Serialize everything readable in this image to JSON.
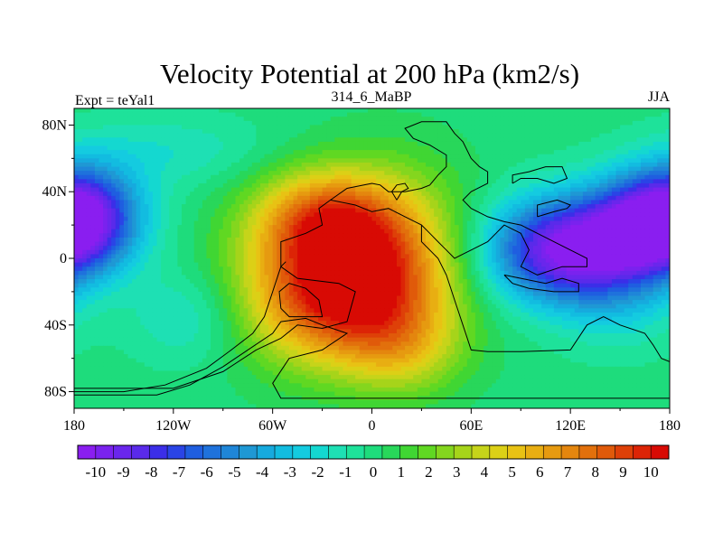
{
  "chart_data": {
    "type": "heatmap",
    "title": "Velocity Potential at 200 hPa (km2/s)",
    "left_label": "Expt = teYal1",
    "center_label": "314_6_MaBP",
    "right_label": "JJA",
    "xlim": [
      -180,
      180
    ],
    "ylim": [
      -90,
      90
    ],
    "x_ticks": [
      {
        "value": -180,
        "label": "180"
      },
      {
        "value": -120,
        "label": "120W"
      },
      {
        "value": -60,
        "label": "60W"
      },
      {
        "value": 0,
        "label": "0"
      },
      {
        "value": 60,
        "label": "60E"
      },
      {
        "value": 120,
        "label": "120E"
      },
      {
        "value": 180,
        "label": "180"
      }
    ],
    "y_ticks": [
      {
        "value": 80,
        "label": "80N"
      },
      {
        "value": 40,
        "label": "40N"
      },
      {
        "value": 0,
        "label": "0"
      },
      {
        "value": -40,
        "label": "40S"
      },
      {
        "value": -80,
        "label": "80S"
      }
    ],
    "colorbar": {
      "labels": [
        "-10",
        "-9",
        "-8",
        "-7",
        "-6",
        "-5",
        "-4",
        "-3",
        "-2",
        "-1",
        "0",
        "1",
        "2",
        "3",
        "4",
        "5",
        "6",
        "7",
        "8",
        "9",
        "10"
      ],
      "colors": [
        "#8a1ef0",
        "#7a22ee",
        "#6a26ec",
        "#5a2aea",
        "#3b2ee8",
        "#2a44e6",
        "#1f5ee0",
        "#1f72dc",
        "#1f86d8",
        "#1f98d4",
        "#16aade",
        "#12bce0",
        "#14cbe0",
        "#14d8d0",
        "#1ee0b4",
        "#1ee29a",
        "#1edc7c",
        "#28d75a",
        "#40d633",
        "#60d822",
        "#84d61e",
        "#a6d41a",
        "#c6d41a",
        "#dcd016",
        "#e8c214",
        "#e8ae12",
        "#e69a10",
        "#e4860e",
        "#e2700c",
        "#e05a0a",
        "#de4008",
        "#dc2406",
        "#d80a04"
      ]
    },
    "field_sources": [
      {
        "lon": -20,
        "lat": -20,
        "value": 10.5,
        "slon": 40,
        "slat": 30
      },
      {
        "lon": -30,
        "lat": 25,
        "value": 6,
        "slon": 30,
        "slat": 20
      },
      {
        "lon": 10,
        "lat": 10,
        "value": 4,
        "slon": 35,
        "slat": 35
      },
      {
        "lon": 20,
        "lat": -55,
        "value": 3,
        "slon": 25,
        "slat": 20
      },
      {
        "lon": 120,
        "lat": 5,
        "value": -11,
        "slon": 35,
        "slat": 22
      },
      {
        "lon": 165,
        "lat": 20,
        "value": -5,
        "slon": 25,
        "slat": 20
      },
      {
        "lon": -175,
        "lat": 25,
        "value": -9,
        "slon": 25,
        "slat": 22
      },
      {
        "lon": -110,
        "lat": -35,
        "value": -2,
        "slon": 25,
        "slat": 20
      },
      {
        "lon": -120,
        "lat": 65,
        "value": -1.5,
        "slon": 40,
        "slat": 15
      },
      {
        "lon": 150,
        "lat": -30,
        "value": -1.5,
        "slon": 25,
        "slat": 20
      }
    ],
    "coastlines": [
      [
        [
          -180,
          -78
        ],
        [
          -120,
          -78
        ],
        [
          -90,
          -68
        ],
        [
          -70,
          -55
        ],
        [
          -55,
          -48
        ],
        [
          -45,
          -40
        ],
        [
          -30,
          -42
        ],
        [
          -15,
          -38
        ],
        [
          -10,
          -20
        ],
        [
          -20,
          -15
        ],
        [
          -45,
          -12
        ],
        [
          -55,
          -5
        ],
        [
          -55,
          10
        ],
        [
          -40,
          15
        ],
        [
          -30,
          20
        ],
        [
          -32,
          30
        ],
        [
          -25,
          35
        ],
        [
          -10,
          32
        ],
        [
          0,
          28
        ],
        [
          10,
          30
        ],
        [
          20,
          25
        ],
        [
          30,
          20
        ],
        [
          30,
          10
        ],
        [
          40,
          0
        ],
        [
          45,
          -10
        ],
        [
          50,
          -25
        ],
        [
          55,
          -40
        ],
        [
          60,
          -55
        ],
        [
          70,
          -56
        ],
        [
          90,
          -56
        ],
        [
          120,
          -55
        ],
        [
          130,
          -40
        ],
        [
          140,
          -35
        ],
        [
          150,
          -40
        ],
        [
          165,
          -45
        ],
        [
          170,
          -52
        ],
        [
          175,
          -60
        ],
        [
          180,
          -62
        ]
      ],
      [
        [
          -180,
          -82
        ],
        [
          -130,
          -82
        ],
        [
          -110,
          -76
        ],
        [
          -90,
          -65
        ],
        [
          -75,
          -55
        ],
        [
          -60,
          -45
        ],
        [
          -55,
          -38
        ],
        [
          -40,
          -36
        ],
        [
          -30,
          -40
        ],
        [
          -15,
          -45
        ],
        [
          -30,
          -55
        ],
        [
          -50,
          -60
        ],
        [
          -60,
          -75
        ],
        [
          -55,
          -84
        ],
        [
          180,
          -84
        ]
      ],
      [
        [
          -180,
          -80
        ],
        [
          -150,
          -80
        ],
        [
          -125,
          -76
        ],
        [
          -100,
          -66
        ],
        [
          -85,
          -55
        ],
        [
          -72,
          -45
        ],
        [
          -65,
          -35
        ],
        [
          -60,
          -20
        ],
        [
          -55,
          -5
        ],
        [
          -52,
          -2
        ]
      ],
      [
        [
          -40,
          -35
        ],
        [
          -50,
          -35
        ],
        [
          -55,
          -30
        ],
        [
          -56,
          -20
        ],
        [
          -50,
          -15
        ],
        [
          -40,
          -18
        ],
        [
          -32,
          -25
        ],
        [
          -30,
          -35
        ],
        [
          -40,
          -35
        ]
      ],
      [
        [
          -25,
          35
        ],
        [
          -15,
          42
        ],
        [
          0,
          45
        ],
        [
          5,
          44
        ],
        [
          10,
          40
        ],
        [
          20,
          40
        ],
        [
          30,
          42
        ],
        [
          35,
          44
        ],
        [
          40,
          50
        ],
        [
          45,
          55
        ],
        [
          45,
          62
        ],
        [
          35,
          68
        ],
        [
          25,
          72
        ],
        [
          20,
          78
        ],
        [
          30,
          82
        ],
        [
          45,
          82
        ],
        [
          50,
          75
        ],
        [
          55,
          70
        ],
        [
          60,
          60
        ],
        [
          65,
          55
        ],
        [
          70,
          52
        ],
        [
          70,
          45
        ],
        [
          60,
          40
        ],
        [
          55,
          35
        ],
        [
          60,
          30
        ],
        [
          70,
          25
        ],
        [
          80,
          22
        ],
        [
          90,
          20
        ],
        [
          100,
          15
        ],
        [
          110,
          10
        ],
        [
          120,
          5
        ],
        [
          130,
          0
        ],
        [
          130,
          -5
        ],
        [
          115,
          -5
        ],
        [
          100,
          -10
        ],
        [
          90,
          -5
        ],
        [
          95,
          5
        ],
        [
          90,
          15
        ],
        [
          80,
          20
        ],
        [
          75,
          15
        ],
        [
          70,
          10
        ],
        [
          60,
          5
        ],
        [
          50,
          0
        ],
        [
          45,
          5
        ],
        [
          40,
          10
        ],
        [
          35,
          15
        ],
        [
          30,
          20
        ]
      ],
      [
        [
          80,
          -10
        ],
        [
          90,
          -12
        ],
        [
          105,
          -15
        ],
        [
          115,
          -12
        ],
        [
          125,
          -15
        ],
        [
          125,
          -20
        ],
        [
          110,
          -20
        ],
        [
          95,
          -18
        ],
        [
          85,
          -15
        ],
        [
          80,
          -10
        ]
      ],
      [
        [
          85,
          45
        ],
        [
          90,
          48
        ],
        [
          100,
          48
        ],
        [
          110,
          45
        ],
        [
          118,
          48
        ],
        [
          115,
          55
        ],
        [
          105,
          55
        ],
        [
          95,
          52
        ],
        [
          85,
          50
        ],
        [
          85,
          45
        ]
      ],
      [
        [
          100,
          25
        ],
        [
          110,
          28
        ],
        [
          118,
          30
        ],
        [
          120,
          32
        ],
        [
          112,
          35
        ],
        [
          100,
          32
        ],
        [
          100,
          25
        ]
      ],
      [
        [
          15,
          35
        ],
        [
          18,
          40
        ],
        [
          22,
          42
        ],
        [
          20,
          45
        ],
        [
          15,
          44
        ],
        [
          12,
          40
        ],
        [
          15,
          35
        ]
      ]
    ]
  }
}
